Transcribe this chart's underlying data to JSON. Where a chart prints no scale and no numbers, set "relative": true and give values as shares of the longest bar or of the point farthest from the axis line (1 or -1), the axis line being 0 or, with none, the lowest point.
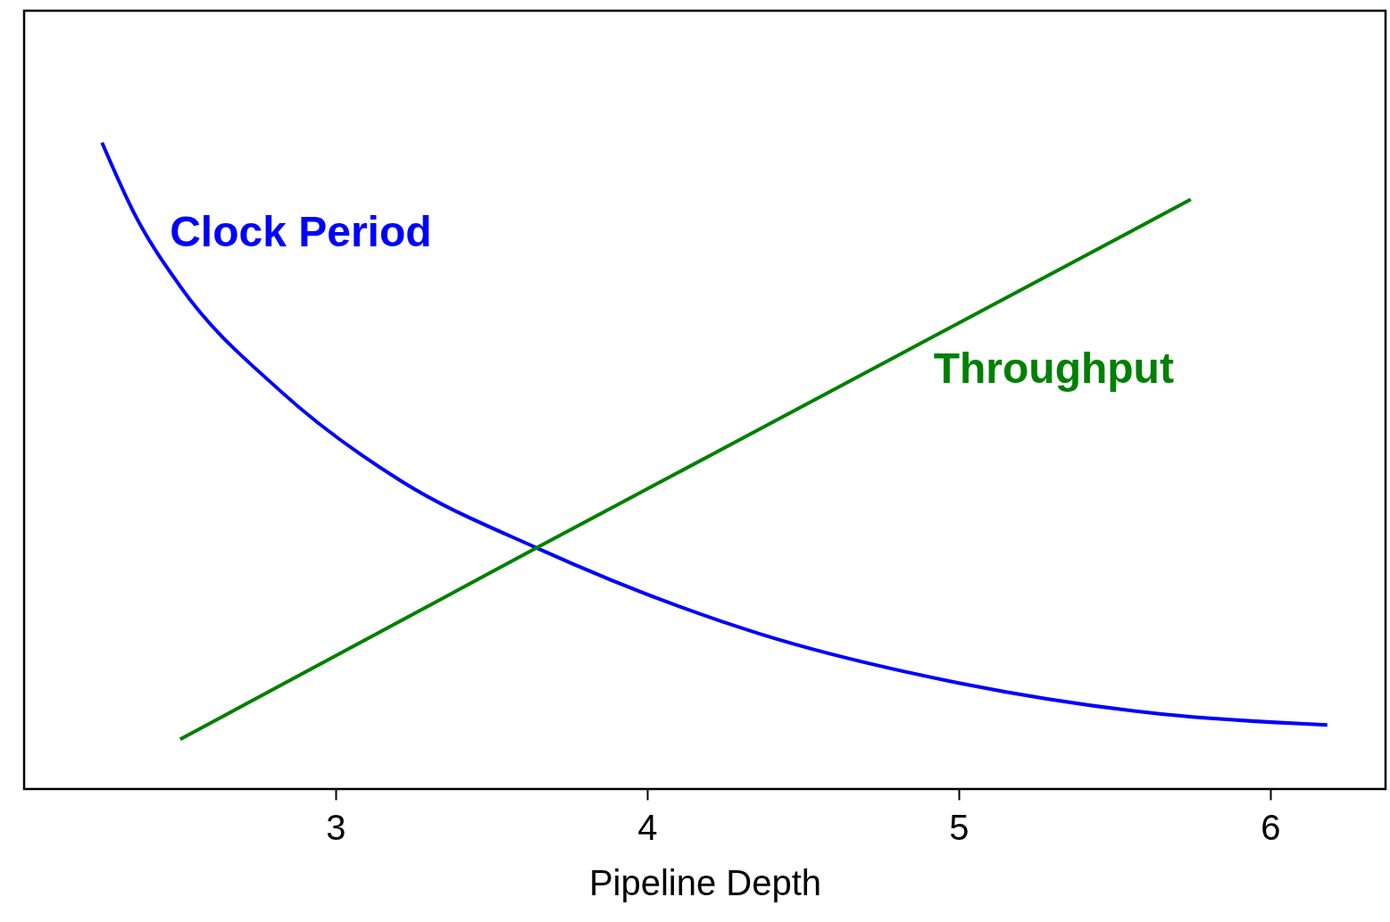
{
  "chart_data": {
    "type": "line",
    "xlabel": "Pipeline Depth",
    "relative": true,
    "xlim": [
      2.0,
      6.37
    ],
    "xticks": [
      3,
      4,
      5,
      6
    ],
    "grid": false,
    "legend": false,
    "marker": "none",
    "line_style": "solid",
    "series": [
      {
        "name": "Clock Period",
        "color": "#0000ff",
        "x": [
          2.25,
          2.355,
          2.499,
          2.822,
          3.215,
          3.645,
          4.361,
          5.0,
          5.65,
          6.183
        ],
        "values": [
          1.0,
          0.889,
          0.779,
          0.616,
          0.475,
          0.373,
          0.24,
          0.164,
          0.116,
          0.099
        ]
      },
      {
        "name": "Throughput",
        "color": "#008000",
        "x": [
          2.501,
          3.645,
          5.745
        ],
        "values": [
          0.077,
          0.373,
          0.912
        ]
      }
    ]
  }
}
